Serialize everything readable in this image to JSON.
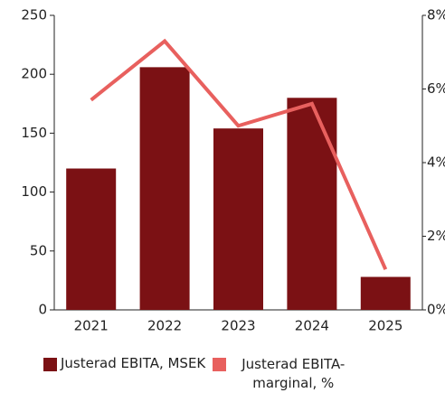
{
  "chart_data": {
    "type": "bar_line",
    "categories": [
      "2021",
      "2022",
      "2023",
      "2024",
      "2025"
    ],
    "series": [
      {
        "name": "Justerad EBITA, MSEK",
        "color": "#7b1114",
        "type": "bar",
        "values": [
          120,
          206,
          154,
          180,
          28
        ]
      },
      {
        "name": "Justerad EBITA-marginal, %",
        "color": "#e8605e",
        "type": "line",
        "axis": "y2",
        "values": [
          5.7,
          7.3,
          5.0,
          5.6,
          1.1
        ]
      }
    ],
    "ylim": [
      0,
      250
    ],
    "yticks": [
      0,
      50,
      100,
      150,
      200,
      250
    ],
    "y2lim": [
      0,
      8
    ],
    "y2ticks": [
      {
        "value": 0,
        "label": "0%"
      },
      {
        "value": 2,
        "label": "2%"
      },
      {
        "value": 4,
        "label": "4%"
      },
      {
        "value": 6,
        "label": "6%"
      },
      {
        "value": 8,
        "label": "8%"
      }
    ],
    "legend": "bottom"
  }
}
